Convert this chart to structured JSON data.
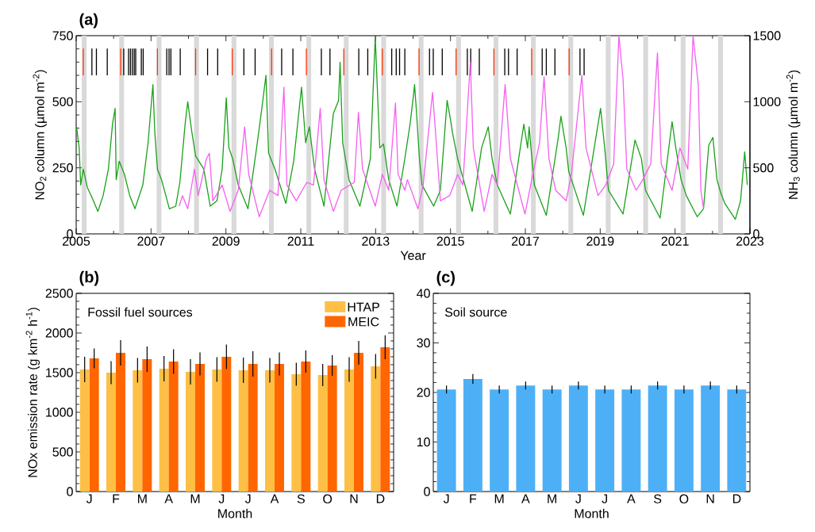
{
  "chart_data": [
    {
      "type": "line",
      "title": "(a)",
      "xlabel": "Year",
      "ylabel": "NO$_{2}$ column (µmol m$^{-2}$)",
      "y2label": "NH$_{3}$ column (µmol m$^{-2}$)",
      "xlim": [
        2005,
        2023
      ],
      "xticks": [
        2005,
        2007,
        2009,
        2011,
        2013,
        2015,
        2017,
        2019,
        2021,
        2023
      ],
      "ylim": [
        0,
        750
      ],
      "yticks": [
        0,
        250,
        500,
        750
      ],
      "y2lim": [
        0,
        1500
      ],
      "y2ticks": [
        0,
        500,
        1000,
        1500
      ],
      "series": [
        {
          "color": "#1aa11a",
          "x": [
            2005.01,
            2005.08,
            2005.12,
            2005.19,
            2005.3,
            2005.4,
            2005.58,
            2005.72,
            2005.86,
            2005.97,
            2006.04,
            2006.07,
            2006.15,
            2006.29,
            2006.43,
            2006.57,
            2006.78,
            2006.92,
            2007.05,
            2007.1,
            2007.17,
            2007.28,
            2007.49,
            2007.66,
            2007.77,
            2007.91,
            2007.98,
            2008.09,
            2008.19,
            2008.41,
            2008.58,
            2008.76,
            2008.9,
            2009.01,
            2009.08,
            2009.18,
            2009.33,
            2009.59,
            2009.82,
            2009.96,
            2010.07,
            2010.14,
            2010.31,
            2010.6,
            2010.81,
            2011.02,
            2011.13,
            2011.23,
            2011.37,
            2011.62,
            2011.87,
            2012.01,
            2012.05,
            2012.12,
            2012.29,
            2012.58,
            2012.86,
            2012.99,
            2013.11,
            2013.21,
            2013.35,
            2013.57,
            2013.78,
            2013.92,
            2014.02,
            2014.04,
            2014.09,
            2014.17,
            2014.24,
            2014.55,
            2014.73,
            2014.91,
            2015.01,
            2015.05,
            2015.19,
            2015.58,
            2015.83,
            2016.01,
            2016.11,
            2016.25,
            2016.6,
            2016.96,
            2017.06,
            2017.1,
            2017.24,
            2017.56,
            2017.88,
            2017.95,
            2018.09,
            2018.16,
            2018.55,
            2019.01,
            2019.12,
            2019.22,
            2019.61,
            2019.93,
            2020.1,
            2020.21,
            2020.6,
            2020.92,
            2021.02,
            2021.16,
            2021.3,
            2021.59,
            2021.76,
            2021.9,
            2022.01,
            2022.12,
            2022.22,
            2022.33,
            2022.61,
            2022.75,
            2022.86,
            2022.93
          ],
          "values": [
            405,
            325,
            185,
            245,
            175,
            145,
            85,
            145,
            245,
            415,
            475,
            205,
            275,
            225,
            145,
            95,
            185,
            345,
            565,
            385,
            245,
            205,
            95,
            105,
            195,
            415,
            500,
            385,
            295,
            245,
            105,
            125,
            245,
            515,
            325,
            285,
            185,
            95,
            325,
            475,
            600,
            305,
            245,
            115,
            275,
            555,
            345,
            405,
            245,
            105,
            455,
            505,
            650,
            345,
            205,
            105,
            285,
            745,
            325,
            340,
            205,
            105,
            285,
            415,
            535,
            565,
            465,
            285,
            185,
            105,
            165,
            505,
            425,
            385,
            285,
            85,
            325,
            405,
            285,
            185,
            75,
            415,
            325,
            405,
            185,
            70,
            365,
            445,
            325,
            235,
            70,
            475,
            325,
            165,
            75,
            355,
            285,
            165,
            60,
            425,
            325,
            205,
            145,
            65,
            95,
            335,
            365,
            205,
            155,
            115,
            55,
            125,
            310,
            185
          ]
        },
        {
          "color": "#f55ff0",
          "axis": "y2",
          "x": [
            2007.75,
            2007.84,
            2007.98,
            2008.16,
            2008.26,
            2008.48,
            2008.56,
            2008.65,
            2008.9,
            2009.11,
            2009.33,
            2009.5,
            2009.61,
            2009.89,
            2010.17,
            2010.39,
            2010.55,
            2010.63,
            2010.88,
            2011.16,
            2011.34,
            2011.52,
            2011.62,
            2011.87,
            2012.08,
            2012.43,
            2012.54,
            2012.65,
            2012.99,
            2013.18,
            2013.35,
            2013.53,
            2013.6,
            2013.78,
            2013.85,
            2014.13,
            2014.27,
            2014.52,
            2014.59,
            2014.73,
            2014.98,
            2015.19,
            2015.33,
            2015.53,
            2015.61,
            2015.9,
            2016.11,
            2016.25,
            2016.46,
            2016.6,
            2016.99,
            2017.17,
            2017.38,
            2017.5,
            2017.63,
            2017.81,
            2018.09,
            2018.23,
            2018.51,
            2018.62,
            2018.94,
            2019.15,
            2019.36,
            2019.5,
            2019.61,
            2019.71,
            2019.96,
            2020.14,
            2020.35,
            2020.53,
            2020.63,
            2020.92,
            2021.13,
            2021.34,
            2021.48,
            2021.62,
            2021.69,
            2021.76
          ],
          "values": [
            210,
            290,
            190,
            490,
            290,
            570,
            610,
            250,
            370,
            170,
            330,
            810,
            450,
            130,
            330,
            290,
            1110,
            370,
            250,
            390,
            370,
            950,
            410,
            170,
            330,
            390,
            920,
            490,
            210,
            450,
            330,
            990,
            450,
            330,
            410,
            190,
            370,
            1070,
            810,
            250,
            290,
            450,
            370,
            1300,
            650,
            170,
            450,
            370,
            1130,
            570,
            150,
            410,
            690,
            1190,
            570,
            330,
            250,
            450,
            1200,
            650,
            290,
            370,
            530,
            1500,
            1170,
            490,
            330,
            410,
            530,
            1370,
            530,
            330,
            650,
            490,
            1500,
            1130,
            330,
            190
          ]
        }
      ],
      "bands": [
        {
          "axis": "x",
          "from": 2005.15,
          "to": 2005.28,
          "color": "#d9d9d9"
        },
        {
          "axis": "x",
          "from": 2006.15,
          "to": 2006.28,
          "color": "#d9d9d9"
        },
        {
          "axis": "x",
          "from": 2007.15,
          "to": 2007.28,
          "color": "#d9d9d9"
        },
        {
          "axis": "x",
          "from": 2008.15,
          "to": 2008.28,
          "color": "#d9d9d9"
        },
        {
          "axis": "x",
          "from": 2009.15,
          "to": 2009.28,
          "color": "#d9d9d9"
        },
        {
          "axis": "x",
          "from": 2010.15,
          "to": 2010.28,
          "color": "#d9d9d9"
        },
        {
          "axis": "x",
          "from": 2011.15,
          "to": 2011.28,
          "color": "#d9d9d9"
        },
        {
          "axis": "x",
          "from": 2012.15,
          "to": 2012.28,
          "color": "#d9d9d9"
        },
        {
          "axis": "x",
          "from": 2013.15,
          "to": 2013.28,
          "color": "#d9d9d9"
        },
        {
          "axis": "x",
          "from": 2014.15,
          "to": 2014.28,
          "color": "#d9d9d9"
        },
        {
          "axis": "x",
          "from": 2015.15,
          "to": 2015.28,
          "color": "#d9d9d9"
        },
        {
          "axis": "x",
          "from": 2016.15,
          "to": 2016.28,
          "color": "#d9d9d9"
        },
        {
          "axis": "x",
          "from": 2017.15,
          "to": 2017.28,
          "color": "#d9d9d9"
        },
        {
          "axis": "x",
          "from": 2018.15,
          "to": 2018.28,
          "color": "#d9d9d9"
        },
        {
          "axis": "x",
          "from": 2019.15,
          "to": 2019.28,
          "color": "#d9d9d9"
        },
        {
          "axis": "x",
          "from": 2020.15,
          "to": 2020.28,
          "color": "#d9d9d9"
        },
        {
          "axis": "x",
          "from": 2021.15,
          "to": 2021.28,
          "color": "#d9d9d9"
        },
        {
          "axis": "x",
          "from": 2022.15,
          "to": 2022.28,
          "color": "#d9d9d9"
        }
      ],
      "ref_lines": [
        {
          "axis": "x",
          "value": 2005.19,
          "color": "#ff3300"
        },
        {
          "axis": "x",
          "value": 2006.19,
          "color": "#ff3300"
        },
        {
          "axis": "x",
          "value": 2007.17,
          "color": "#ff3300"
        },
        {
          "axis": "x",
          "value": 2008.19,
          "color": "#ff3300"
        },
        {
          "axis": "x",
          "value": 2009.17,
          "color": "#ff3300"
        },
        {
          "axis": "x",
          "value": 2010.22,
          "color": "#ff3300"
        },
        {
          "axis": "x",
          "value": 2011.15,
          "color": "#ff3300"
        },
        {
          "axis": "x",
          "value": 2012.15,
          "color": "#ff3300"
        },
        {
          "axis": "x",
          "value": 2013.18,
          "color": "#ff3300"
        },
        {
          "axis": "x",
          "value": 2014.16,
          "color": "#ff3300"
        },
        {
          "axis": "x",
          "value": 2015.15,
          "color": "#ff3300"
        },
        {
          "axis": "x",
          "value": 2016.16,
          "color": "#ff3300"
        },
        {
          "axis": "x",
          "value": 2017.17,
          "color": "#ff3300"
        },
        {
          "axis": "x",
          "value": 2018.17,
          "color": "#ff3300"
        },
        {
          "axis": "x",
          "value": 2005.42,
          "color": "#000000"
        },
        {
          "axis": "x",
          "value": 2005.54,
          "color": "#000000"
        },
        {
          "axis": "x",
          "value": 2005.83,
          "color": "#000000"
        },
        {
          "axis": "x",
          "value": 2006.27,
          "color": "#000000"
        },
        {
          "axis": "x",
          "value": 2006.4,
          "color": "#000000"
        },
        {
          "axis": "x",
          "value": 2006.45,
          "color": "#000000"
        },
        {
          "axis": "x",
          "value": 2006.5,
          "color": "#000000"
        },
        {
          "axis": "x",
          "value": 2006.55,
          "color": "#000000"
        },
        {
          "axis": "x",
          "value": 2006.59,
          "color": "#000000"
        },
        {
          "axis": "x",
          "value": 2006.74,
          "color": "#000000"
        },
        {
          "axis": "x",
          "value": 2006.79,
          "color": "#000000"
        },
        {
          "axis": "x",
          "value": 2007.42,
          "color": "#000000"
        },
        {
          "axis": "x",
          "value": 2007.48,
          "color": "#000000"
        },
        {
          "axis": "x",
          "value": 2007.53,
          "color": "#000000"
        },
        {
          "axis": "x",
          "value": 2007.78,
          "color": "#000000"
        },
        {
          "axis": "x",
          "value": 2008.51,
          "color": "#000000"
        },
        {
          "axis": "x",
          "value": 2008.78,
          "color": "#000000"
        },
        {
          "axis": "x",
          "value": 2009.48,
          "color": "#000000"
        },
        {
          "axis": "x",
          "value": 2009.78,
          "color": "#000000"
        },
        {
          "axis": "x",
          "value": 2010.49,
          "color": "#000000"
        },
        {
          "axis": "x",
          "value": 2010.79,
          "color": "#000000"
        },
        {
          "axis": "x",
          "value": 2011.55,
          "color": "#000000"
        },
        {
          "axis": "x",
          "value": 2011.78,
          "color": "#000000"
        },
        {
          "axis": "x",
          "value": 2012.55,
          "color": "#000000"
        },
        {
          "axis": "x",
          "value": 2012.79,
          "color": "#000000"
        },
        {
          "axis": "x",
          "value": 2013.43,
          "color": "#000000"
        },
        {
          "axis": "x",
          "value": 2013.55,
          "color": "#000000"
        },
        {
          "axis": "x",
          "value": 2013.64,
          "color": "#000000"
        },
        {
          "axis": "x",
          "value": 2013.78,
          "color": "#000000"
        },
        {
          "axis": "x",
          "value": 2014.44,
          "color": "#000000"
        },
        {
          "axis": "x",
          "value": 2014.54,
          "color": "#000000"
        },
        {
          "axis": "x",
          "value": 2014.78,
          "color": "#000000"
        },
        {
          "axis": "x",
          "value": 2015.45,
          "color": "#000000"
        },
        {
          "axis": "x",
          "value": 2015.54,
          "color": "#000000"
        },
        {
          "axis": "x",
          "value": 2015.77,
          "color": "#000000"
        },
        {
          "axis": "x",
          "value": 2016.45,
          "color": "#000000"
        },
        {
          "axis": "x",
          "value": 2016.55,
          "color": "#000000"
        },
        {
          "axis": "x",
          "value": 2016.78,
          "color": "#000000"
        },
        {
          "axis": "x",
          "value": 2017.45,
          "color": "#000000"
        },
        {
          "axis": "x",
          "value": 2017.56,
          "color": "#000000"
        },
        {
          "axis": "x",
          "value": 2017.79,
          "color": "#000000"
        },
        {
          "axis": "x",
          "value": 2018.46,
          "color": "#000000"
        },
        {
          "axis": "x",
          "value": 2018.57,
          "color": "#000000"
        }
      ]
    },
    {
      "type": "bar",
      "title": "(b)",
      "xlabel": "Month",
      "ylabel": "NOx emission rate (g km$^{-2}$ h$^{-1}$)",
      "annotations": [
        "Fossil fuel sources"
      ],
      "legend": "top right",
      "categories": [
        "J",
        "F",
        "M",
        "A",
        "M",
        "J",
        "J",
        "A",
        "S",
        "O",
        "N",
        "D"
      ],
      "ylim": [
        0,
        2500
      ],
      "yticks": [
        0,
        500,
        1000,
        1500,
        2000,
        2500
      ],
      "series": [
        {
          "name": "HTAP",
          "color": "#fdbf45",
          "values": [
            1540,
            1500,
            1530,
            1550,
            1510,
            1540,
            1530,
            1530,
            1480,
            1470,
            1540,
            1580
          ],
          "errors": [
            160,
            145,
            155,
            160,
            160,
            155,
            160,
            155,
            145,
            140,
            155,
            155
          ]
        },
        {
          "name": "MEIC",
          "color": "#ff6600",
          "values": [
            1680,
            1750,
            1670,
            1640,
            1610,
            1700,
            1610,
            1610,
            1640,
            1590,
            1750,
            1820
          ],
          "errors": [
            125,
            160,
            160,
            155,
            145,
            155,
            160,
            145,
            140,
            130,
            150,
            150
          ]
        }
      ]
    },
    {
      "type": "bar",
      "title": "(c)",
      "xlabel": "Month",
      "annotations": [
        "Soil source"
      ],
      "categories": [
        "J",
        "F",
        "M",
        "A",
        "M",
        "J",
        "J",
        "A",
        "S",
        "O",
        "N",
        "D"
      ],
      "ylim": [
        0,
        40
      ],
      "yticks": [
        0,
        10,
        20,
        30,
        40
      ],
      "color": "#4db0f7",
      "values": [
        20.6,
        22.7,
        20.6,
        21.4,
        20.6,
        21.4,
        20.6,
        20.6,
        21.4,
        20.6,
        21.4,
        20.6
      ],
      "errors": [
        0.8,
        1.0,
        0.8,
        0.8,
        0.8,
        0.8,
        0.8,
        0.8,
        0.8,
        0.8,
        0.8,
        0.8
      ]
    }
  ]
}
